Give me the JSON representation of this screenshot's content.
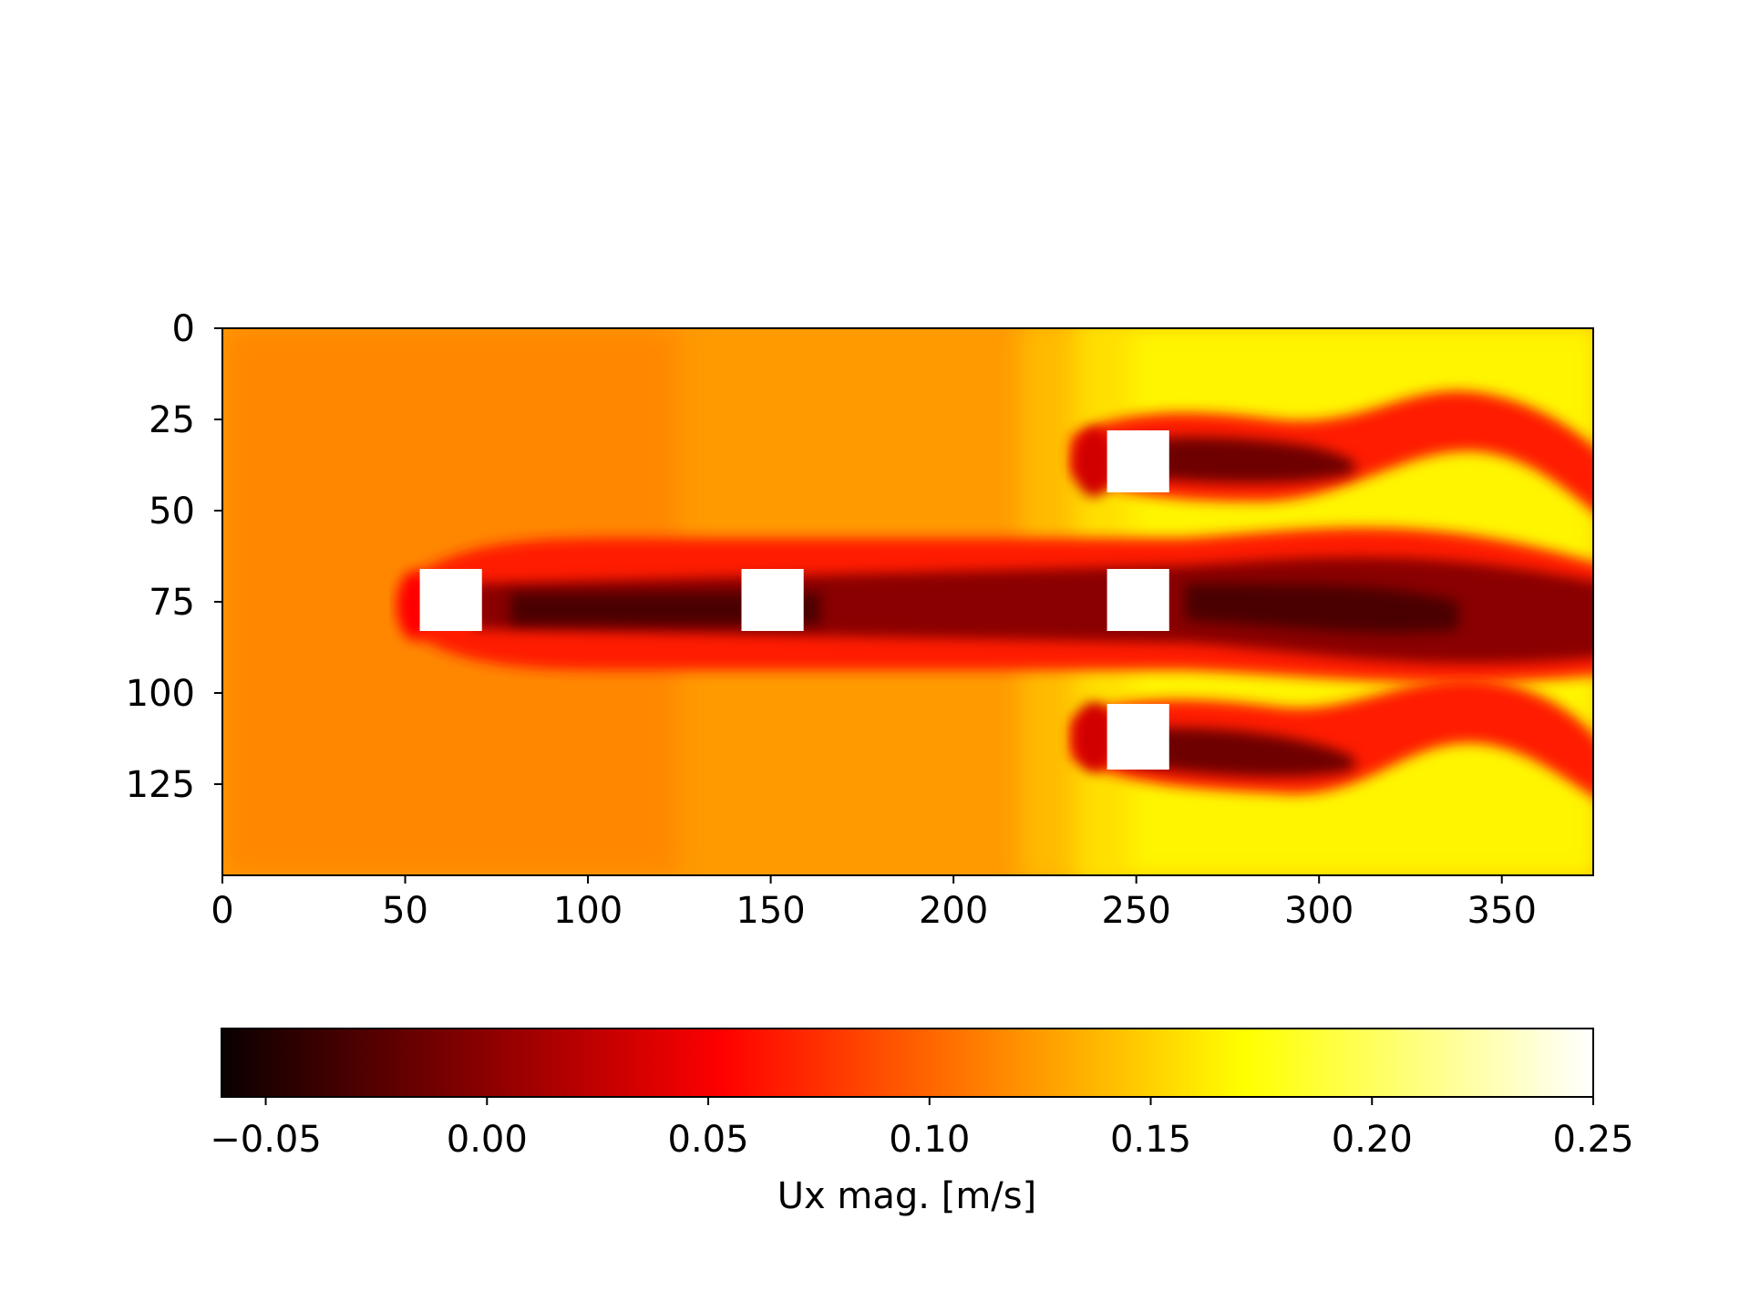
{
  "chart_data": {
    "type": "heatmap",
    "title": "",
    "colormap": "hot",
    "grid": false,
    "x_axis": {
      "range": [
        0,
        375
      ],
      "ticks": [
        0,
        50,
        100,
        150,
        200,
        250,
        300,
        350
      ],
      "tick_labels": [
        "0",
        "50",
        "100",
        "150",
        "200",
        "250",
        "300",
        "350"
      ]
    },
    "y_axis": {
      "range": [
        0,
        150
      ],
      "inverted": true,
      "ticks": [
        0,
        25,
        50,
        75,
        100,
        125
      ],
      "tick_labels": [
        "0",
        "25",
        "50",
        "75",
        "100",
        "125"
      ]
    },
    "obstacles": [
      {
        "x": [
          54,
          71
        ],
        "y": [
          66,
          83
        ]
      },
      {
        "x": [
          142,
          159
        ],
        "y": [
          66,
          83
        ]
      },
      {
        "x": [
          242,
          259
        ],
        "y": [
          28,
          45
        ]
      },
      {
        "x": [
          242,
          259
        ],
        "y": [
          66,
          83
        ]
      },
      {
        "x": [
          242,
          259
        ],
        "y": [
          103,
          121
        ]
      }
    ],
    "colorbar": {
      "label": "Ux mag. [m/s]",
      "range": [
        -0.06,
        0.25
      ],
      "ticks": [
        -0.05,
        0.0,
        0.05,
        0.1,
        0.15,
        0.2,
        0.25
      ],
      "tick_labels": [
        "−0.05",
        "0.00",
        "0.05",
        "0.10",
        "0.15",
        "0.20",
        "0.25"
      ]
    }
  }
}
